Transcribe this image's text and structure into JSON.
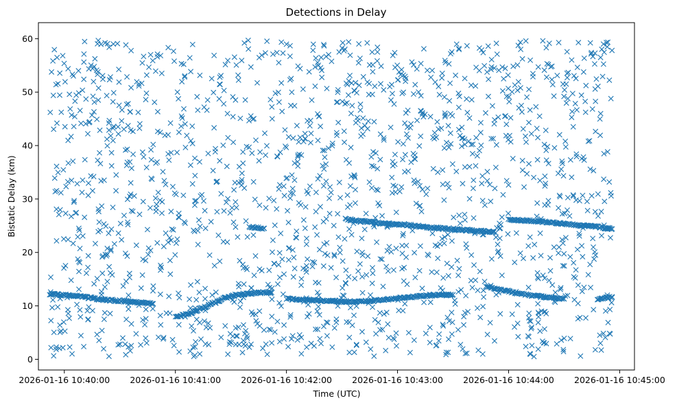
{
  "colors": {
    "marker": "#1f77b4",
    "axis": "#000000",
    "background": "#ffffff"
  },
  "chart_data": {
    "type": "scatter",
    "marker": "x",
    "title": "Detections in Delay",
    "xlabel": "Time (UTC)",
    "ylabel": "Bistatic Delay (km)",
    "xlim_seconds": [
      -14,
      308
    ],
    "ylim": [
      -2,
      63
    ],
    "x_origin": "2026-01-16 10:40:00",
    "x_ticks": [
      {
        "seconds": 0,
        "label": "2026-01-16 10:40:00"
      },
      {
        "seconds": 60,
        "label": "2026-01-16 10:41:00"
      },
      {
        "seconds": 120,
        "label": "2026-01-16 10:42:00"
      },
      {
        "seconds": 180,
        "label": "2026-01-16 10:43:00"
      },
      {
        "seconds": 240,
        "label": "2026-01-16 10:44:00"
      },
      {
        "seconds": 300,
        "label": "2026-01-16 10:45:00"
      }
    ],
    "y_ticks": [
      {
        "value": 0,
        "label": "0"
      },
      {
        "value": 10,
        "label": "10"
      },
      {
        "value": 20,
        "label": "20"
      },
      {
        "value": 30,
        "label": "30"
      },
      {
        "value": 40,
        "label": "40"
      },
      {
        "value": 50,
        "label": "50"
      },
      {
        "value": 60,
        "label": "60"
      }
    ],
    "target_tracks": [
      {
        "name": "track-1",
        "points": [
          [
            -8,
            12.2
          ],
          [
            -4,
            12.1
          ],
          [
            0,
            12.0
          ],
          [
            4,
            11.9
          ],
          [
            8,
            11.8
          ],
          [
            12,
            11.6
          ],
          [
            16,
            11.4
          ],
          [
            20,
            11.2
          ],
          [
            24,
            11.1
          ],
          [
            28,
            11.0
          ],
          [
            32,
            10.9
          ],
          [
            36,
            10.8
          ],
          [
            40,
            10.6
          ],
          [
            44,
            10.5
          ],
          [
            48,
            10.4
          ]
        ]
      },
      {
        "name": "track-2",
        "points": [
          [
            60,
            8.0
          ],
          [
            64,
            8.3
          ],
          [
            68,
            8.6
          ],
          [
            72,
            9.2
          ],
          [
            76,
            9.8
          ],
          [
            80,
            10.4
          ],
          [
            84,
            11.0
          ],
          [
            88,
            11.6
          ],
          [
            92,
            12.0
          ],
          [
            96,
            12.2
          ],
          [
            100,
            12.3
          ],
          [
            104,
            12.4
          ],
          [
            108,
            12.5
          ],
          [
            112,
            12.5
          ]
        ]
      },
      {
        "name": "track-3",
        "points": [
          [
            120,
            11.3
          ],
          [
            126,
            11.2
          ],
          [
            132,
            11.1
          ],
          [
            138,
            11.0
          ],
          [
            144,
            10.9
          ],
          [
            150,
            10.8
          ],
          [
            156,
            10.8
          ],
          [
            162,
            10.9
          ],
          [
            168,
            11.0
          ],
          [
            174,
            11.2
          ],
          [
            180,
            11.4
          ],
          [
            186,
            11.6
          ],
          [
            192,
            11.8
          ],
          [
            198,
            12.0
          ],
          [
            204,
            12.1
          ],
          [
            210,
            12.1
          ]
        ]
      },
      {
        "name": "track-4",
        "points": [
          [
            152,
            26.2
          ],
          [
            160,
            25.9
          ],
          [
            168,
            25.6
          ],
          [
            176,
            25.3
          ],
          [
            184,
            25.2
          ],
          [
            192,
            24.9
          ],
          [
            200,
            24.6
          ],
          [
            208,
            24.4
          ],
          [
            216,
            24.2
          ],
          [
            224,
            24.0
          ],
          [
            232,
            23.8
          ]
        ]
      },
      {
        "name": "track-5",
        "points": [
          [
            228,
            13.6
          ],
          [
            234,
            13.1
          ],
          [
            240,
            12.7
          ],
          [
            246,
            12.3
          ],
          [
            252,
            12.0
          ],
          [
            258,
            11.7
          ],
          [
            264,
            11.5
          ],
          [
            270,
            11.3
          ]
        ]
      },
      {
        "name": "track-6",
        "points": [
          [
            240,
            26.2
          ],
          [
            248,
            26.0
          ],
          [
            256,
            25.8
          ],
          [
            264,
            25.6
          ],
          [
            272,
            25.3
          ],
          [
            280,
            25.0
          ],
          [
            288,
            24.8
          ],
          [
            296,
            24.4
          ]
        ]
      },
      {
        "name": "track-7",
        "points": [
          [
            100,
            24.8
          ],
          [
            104,
            24.6
          ],
          [
            108,
            24.5
          ]
        ]
      },
      {
        "name": "track-8",
        "points": [
          [
            288,
            11.3
          ],
          [
            292,
            11.5
          ],
          [
            296,
            11.6
          ]
        ]
      }
    ],
    "clutter": {
      "count": 1700,
      "x_range": [
        -8,
        296
      ],
      "y_range": [
        0.5,
        59.8
      ]
    }
  }
}
